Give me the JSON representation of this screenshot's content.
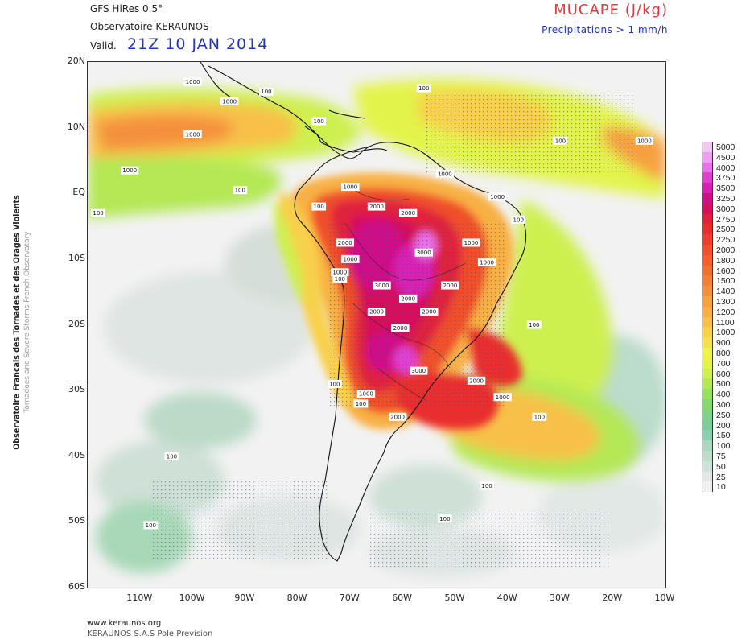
{
  "header": {
    "model": "GFS HiRes 0.5°",
    "observatory": "Observatoire KERAUNOS",
    "valid_label": "Valid.",
    "valid_date": "21Z 10 JAN 2014",
    "parameter": "MUCAPE (J/kg)",
    "precip_note": "Precipitations > 1 mm/h"
  },
  "side": {
    "fr": "Observatoire Francais des Tornades et des Orages Violents",
    "en": "Tornadoes and Severe Storms French Observatory"
  },
  "axes": {
    "lat_labels": [
      "20N",
      "10N",
      "EQ",
      "10S",
      "20S",
      "30S",
      "40S",
      "50S",
      "60S"
    ],
    "lon_labels": [
      "110W",
      "100W",
      "90W",
      "80W",
      "70W",
      "60W",
      "50W",
      "40W",
      "30W",
      "20W",
      "10W"
    ]
  },
  "legend": {
    "levels": [
      "5000",
      "4500",
      "4000",
      "3750",
      "3500",
      "3250",
      "3000",
      "2750",
      "2500",
      "2250",
      "2000",
      "1800",
      "1600",
      "1500",
      "1400",
      "1300",
      "1200",
      "1100",
      "1000",
      "900",
      "800",
      "700",
      "600",
      "500",
      "400",
      "300",
      "250",
      "200",
      "150",
      "100",
      "75",
      "50",
      "25",
      "10"
    ],
    "colors": [
      "#f4c8f4",
      "#f09cf0",
      "#e870e8",
      "#e040d0",
      "#d820b4",
      "#d01088",
      "#d8105c",
      "#e0203c",
      "#e82e2e",
      "#ee3e2c",
      "#f0502c",
      "#f2602e",
      "#f47032",
      "#f48038",
      "#f4903c",
      "#f6a040",
      "#f8b044",
      "#f8c048",
      "#f8d04c",
      "#f6e050",
      "#f0f050",
      "#e2f44c",
      "#cef050",
      "#b4e854",
      "#98e060",
      "#86d870",
      "#7ed48a",
      "#7ccc9c",
      "#8cd0ae",
      "#a8d8c0",
      "#bcdccc",
      "#cfe2da",
      "#e2e8e6",
      "#f0f0f0"
    ]
  },
  "contour_labels": [
    {
      "lat": 14,
      "lon": -93,
      "text": "1000"
    },
    {
      "lat": 17,
      "lon": -100,
      "text": "1000"
    },
    {
      "lat": 15.5,
      "lon": -86,
      "text": "100"
    },
    {
      "lat": 16,
      "lon": -56,
      "text": "100"
    },
    {
      "lat": 9,
      "lon": -100,
      "text": "1000"
    },
    {
      "lat": 3.5,
      "lon": -112,
      "text": "1000"
    },
    {
      "lat": 0.5,
      "lon": -91,
      "text": "100"
    },
    {
      "lat": 11,
      "lon": -76,
      "text": "100"
    },
    {
      "lat": 1,
      "lon": -70,
      "text": "1000"
    },
    {
      "lat": 3,
      "lon": -52,
      "text": "1000"
    },
    {
      "lat": -2,
      "lon": -65,
      "text": "2000"
    },
    {
      "lat": -3,
      "lon": -59,
      "text": "2000"
    },
    {
      "lat": -2,
      "lon": -76,
      "text": "100"
    },
    {
      "lat": -0.5,
      "lon": -42,
      "text": "1000"
    },
    {
      "lat": -4,
      "lon": -38,
      "text": "100"
    },
    {
      "lat": -3,
      "lon": -118,
      "text": "100"
    },
    {
      "lat": -7.5,
      "lon": -71,
      "text": "2000"
    },
    {
      "lat": -7.5,
      "lon": -47,
      "text": "1000"
    },
    {
      "lat": -9,
      "lon": -56,
      "text": "3000"
    },
    {
      "lat": -10,
      "lon": -70,
      "text": "1000"
    },
    {
      "lat": -10.5,
      "lon": -44,
      "text": "1000"
    },
    {
      "lat": -12,
      "lon": -72,
      "text": "1000"
    },
    {
      "lat": -13,
      "lon": -72,
      "text": "100"
    },
    {
      "lat": -14,
      "lon": -64,
      "text": "3000"
    },
    {
      "lat": -14,
      "lon": -51,
      "text": "2000"
    },
    {
      "lat": -16,
      "lon": -59,
      "text": "2000"
    },
    {
      "lat": -18,
      "lon": -55,
      "text": "2000"
    },
    {
      "lat": -18,
      "lon": -65,
      "text": "2000"
    },
    {
      "lat": -20.5,
      "lon": -60.5,
      "text": "2000"
    },
    {
      "lat": -20,
      "lon": -35,
      "text": "100"
    },
    {
      "lat": -27,
      "lon": -57,
      "text": "3000"
    },
    {
      "lat": -28.5,
      "lon": -46,
      "text": "2000"
    },
    {
      "lat": -29,
      "lon": -73,
      "text": "100"
    },
    {
      "lat": -30.5,
      "lon": -67,
      "text": "1000"
    },
    {
      "lat": -32,
      "lon": -68,
      "text": "100"
    },
    {
      "lat": -31,
      "lon": -41,
      "text": "1000"
    },
    {
      "lat": -34,
      "lon": -34,
      "text": "100"
    },
    {
      "lat": -34,
      "lon": -61,
      "text": "2000"
    },
    {
      "lat": -40,
      "lon": -104,
      "text": "100"
    },
    {
      "lat": -44.5,
      "lon": -44,
      "text": "100"
    },
    {
      "lat": -49.5,
      "lon": -52,
      "text": "100"
    },
    {
      "lat": -50.5,
      "lon": -108,
      "text": "100"
    },
    {
      "lat": 8,
      "lon": -30,
      "text": "100"
    },
    {
      "lat": 8,
      "lon": -14,
      "text": "1000"
    }
  ],
  "footer": {
    "url": "www.keraunos.org",
    "company": "KERAUNOS S.A.S Pole Prevision"
  }
}
